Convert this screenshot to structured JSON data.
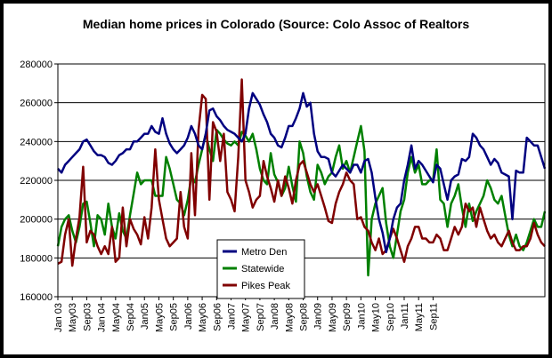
{
  "chart_data": {
    "type": "line",
    "title": "Median home prices in Colorado (Source: Colo Assoc of Realtors",
    "xlabel": "",
    "ylabel": "",
    "ylim": [
      160000,
      280000
    ],
    "yticks": [
      160000,
      180000,
      200000,
      220000,
      240000,
      260000,
      280000
    ],
    "ytick_labels": [
      "160000",
      "180000",
      "200000",
      "220000",
      "240000",
      "260000",
      "280000"
    ],
    "grid": "horizontal",
    "legend_placement": "bottom-center",
    "x_tick_labels": [
      "Jan 03",
      "May03",
      "Sep03",
      "Jan 04",
      "May04",
      "Sep04",
      "Jan05",
      "May05",
      "Sep05",
      "Jan06",
      "May06",
      "Sep06",
      "Jan07",
      "May07",
      "Sep07",
      "Jan08",
      "May08",
      "Sep08",
      "Jan09",
      "May09",
      "Sep09",
      "Jan10",
      "May10",
      "Sep10",
      "Jan11",
      "May11",
      "Sep11"
    ],
    "x_start": "Jan 03",
    "x_end": "Nov11",
    "series": [
      {
        "name": "Metro Den",
        "color": "#000080",
        "values": [
          226000,
          224000,
          228000,
          230000,
          232000,
          234000,
          236000,
          240000,
          241000,
          238000,
          235000,
          233000,
          233000,
          232000,
          229000,
          228000,
          230000,
          233000,
          234000,
          236000,
          236000,
          240000,
          240000,
          242000,
          244000,
          244000,
          248000,
          245000,
          244000,
          252000,
          244000,
          239000,
          236000,
          234000,
          236000,
          238000,
          242000,
          248000,
          244000,
          238000,
          236000,
          244000,
          256000,
          257000,
          253000,
          251000,
          248000,
          246000,
          245000,
          244000,
          242000,
          240000,
          244000,
          257000,
          265000,
          262000,
          259000,
          254000,
          250000,
          244000,
          242000,
          238000,
          237000,
          242000,
          248000,
          248000,
          252000,
          257000,
          265000,
          258000,
          260000,
          244000,
          235000,
          232000,
          232000,
          231000,
          224000,
          222000,
          225000,
          228000,
          226000,
          224000,
          228000,
          228000,
          224000,
          230000,
          231000,
          224000,
          211000,
          200000,
          193000,
          183000,
          190000,
          200000,
          206000,
          208000,
          220000,
          228000,
          238000,
          226000,
          230000,
          228000,
          225000,
          222000,
          219000,
          228000,
          226000,
          218000,
          210000,
          220000,
          222000,
          223000,
          231000,
          230000,
          232000,
          244000,
          242000,
          238000,
          236000,
          232000,
          228000,
          231000,
          229000,
          224000,
          223000,
          222000,
          200000,
          225000,
          224000,
          224000,
          242000,
          240000,
          238000,
          238000,
          232000,
          226000
        ]
      },
      {
        "name": "Statewide",
        "color": "#008000",
        "values": [
          186000,
          196000,
          200000,
          202000,
          194000,
          188000,
          196000,
          208000,
          209000,
          198000,
          186000,
          202000,
          200000,
          192000,
          208000,
          196000,
          190000,
          203000,
          194000,
          190000,
          202000,
          213000,
          224000,
          218000,
          220000,
          220000,
          220000,
          212000,
          212000,
          212000,
          232000,
          226000,
          218000,
          210000,
          208000,
          202000,
          210000,
          222000,
          219000,
          228000,
          236000,
          244000,
          236000,
          230000,
          246000,
          244000,
          241000,
          239000,
          238000,
          240000,
          238000,
          245000,
          243000,
          240000,
          244000,
          236000,
          226000,
          220000,
          218000,
          234000,
          223000,
          219000,
          212000,
          216000,
          227000,
          217000,
          209000,
          240000,
          234000,
          222000,
          214000,
          210000,
          228000,
          224000,
          218000,
          222000,
          224000,
          232000,
          238000,
          226000,
          230000,
          224000,
          232000,
          240000,
          248000,
          235000,
          171000,
          200000,
          208000,
          212000,
          216000,
          198000,
          186000,
          180000,
          192000,
          204000,
          210000,
          224000,
          232000,
          224000,
          228000,
          218000,
          218000,
          220000,
          220000,
          236000,
          210000,
          208000,
          196000,
          208000,
          212000,
          218000,
          206000,
          196000,
          208000,
          199000,
          204000,
          208000,
          212000,
          220000,
          216000,
          210000,
          208000,
          212000,
          202000,
          192000,
          186000,
          192000,
          186000,
          184000,
          188000,
          194000,
          200000,
          196000,
          196000,
          204000
        ]
      },
      {
        "name": "Pikes Peak",
        "color": "#800000",
        "values": [
          177000,
          178000,
          192000,
          200000,
          176000,
          190000,
          201000,
          227000,
          188000,
          194000,
          192000,
          186000,
          182000,
          186000,
          182000,
          196000,
          178000,
          180000,
          206000,
          186000,
          200000,
          195000,
          192000,
          187000,
          201000,
          190000,
          206000,
          236000,
          210000,
          200000,
          190000,
          186000,
          188000,
          190000,
          214000,
          196000,
          190000,
          234000,
          202000,
          246000,
          264000,
          262000,
          210000,
          250000,
          245000,
          230000,
          244000,
          214000,
          210000,
          204000,
          232000,
          272000,
          220000,
          214000,
          206000,
          210000,
          212000,
          230000,
          222000,
          216000,
          209000,
          220000,
          212000,
          222000,
          216000,
          208000,
          220000,
          228000,
          230000,
          224000,
          218000,
          214000,
          218000,
          212000,
          206000,
          199000,
          198000,
          208000,
          214000,
          218000,
          224000,
          220000,
          218000,
          200000,
          201000,
          196000,
          194000,
          188000,
          184000,
          190000,
          182000,
          184000,
          190000,
          195000,
          190000,
          184000,
          178000,
          186000,
          190000,
          196000,
          196000,
          190000,
          190000,
          188000,
          188000,
          192000,
          190000,
          184000,
          184000,
          190000,
          196000,
          192000,
          196000,
          208000,
          204000,
          206000,
          196000,
          206000,
          200000,
          194000,
          190000,
          192000,
          188000,
          186000,
          190000,
          194000,
          188000,
          184000,
          184000,
          186000,
          186000,
          190000,
          198000,
          192000,
          188000,
          186000
        ]
      }
    ]
  }
}
